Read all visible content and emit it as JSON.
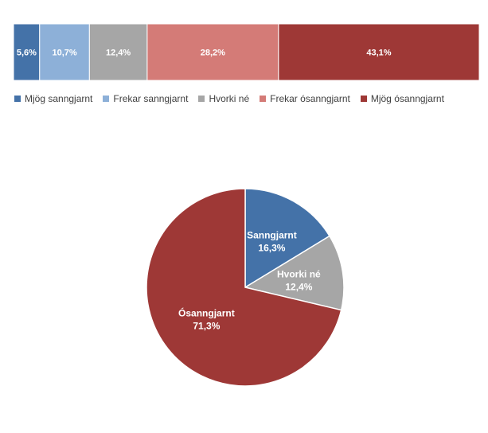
{
  "chart_data": [
    {
      "type": "bar",
      "orientation": "horizontal-stacked-100",
      "categories": [
        ""
      ],
      "series": [
        {
          "name": "Mjög sanngjarnt",
          "values": [
            5.6
          ],
          "label": "5,6%",
          "color": "#4472a8"
        },
        {
          "name": "Frekar sanngjarnt",
          "values": [
            10.7
          ],
          "label": "10,7%",
          "color": "#8db0d8"
        },
        {
          "name": "Hvorki né",
          "values": [
            12.4
          ],
          "label": "12,4%",
          "color": "#a6a6a6"
        },
        {
          "name": "Frekar ósanngjarnt",
          "values": [
            28.2
          ],
          "label": "28,2%",
          "color": "#d47b77"
        },
        {
          "name": "Mjög ósanngjarnt",
          "values": [
            43.1
          ],
          "label": "43,1%",
          "color": "#9e3836"
        }
      ],
      "xlim": [
        0,
        100
      ],
      "legend_position": "bottom",
      "grid": false
    },
    {
      "type": "pie",
      "slices": [
        {
          "name": "Sanngjarnt",
          "value": 16.3,
          "label": "16,3%",
          "color": "#4472a8"
        },
        {
          "name": "Hvorki né",
          "value": 12.4,
          "label": "12,4%",
          "color": "#a6a6a6"
        },
        {
          "name": "Ósanngjarnt",
          "value": 71.3,
          "label": "71,3%",
          "color": "#9e3836"
        }
      ],
      "start_angle": "12 o'clock",
      "direction": "clockwise"
    }
  ]
}
